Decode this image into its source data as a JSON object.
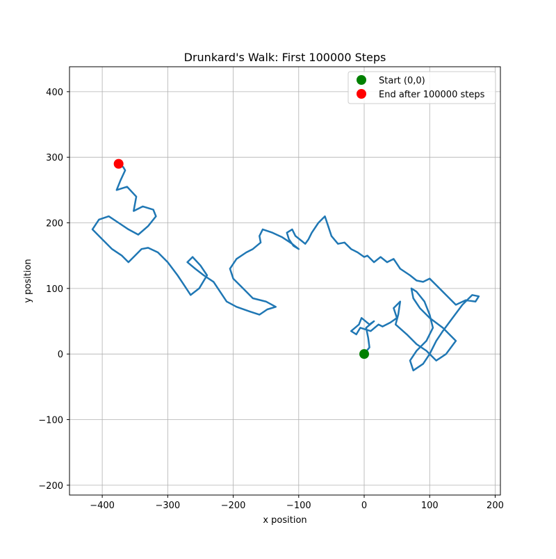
{
  "chart_data": {
    "type": "line",
    "title": "Drunkard's Walk: First 100000 Steps",
    "xlabel": "x position",
    "ylabel": "y position",
    "xlim": [
      -450,
      208
    ],
    "ylim": [
      -215,
      438
    ],
    "x_ticks": [
      -400,
      -300,
      -200,
      -100,
      0,
      100,
      200
    ],
    "y_ticks": [
      -200,
      -100,
      0,
      100,
      200,
      300,
      400
    ],
    "x_tick_labels": [
      "−400",
      "−300",
      "−200",
      "−100",
      "0",
      "100",
      "200"
    ],
    "y_tick_labels": [
      "−200",
      "−100",
      "0",
      "100",
      "200",
      "300",
      "400"
    ],
    "grid": true,
    "legend_position": "top-right",
    "series": [
      {
        "color": "#1f77b4",
        "x": [
          0,
          8,
          6,
          3,
          15,
          8,
          -4,
          -8,
          -20,
          -12,
          -6,
          10,
          22,
          28,
          40,
          50,
          45,
          55,
          52,
          48,
          65,
          80,
          95,
          110,
          125,
          140,
          120,
          100,
          85,
          75,
          72,
          80,
          92,
          100,
          105,
          95,
          80,
          70,
          75,
          90,
          100,
          110,
          120,
          135,
          150,
          165,
          175,
          170,
          155,
          140,
          125,
          110,
          100,
          90,
          80,
          70,
          55,
          45,
          35,
          25,
          15,
          5,
          0,
          -10,
          -20,
          -30,
          -40,
          -50,
          -55,
          -60,
          -70,
          -80,
          -85,
          -90,
          -95,
          -105,
          -110,
          -118,
          -115,
          -108,
          -100,
          -110,
          -125,
          -140,
          -155,
          -160,
          -158,
          -170,
          -180,
          -195,
          -205,
          -200,
          -185,
          -170,
          -150,
          -135,
          -148,
          -160,
          -175,
          -195,
          -210,
          -220,
          -230,
          -245,
          -258,
          -270,
          -262,
          -250,
          -240,
          -252,
          -265,
          -275,
          -285,
          -300,
          -315,
          -330,
          -340,
          -350,
          -360,
          -370,
          -385,
          -400,
          -415,
          -405,
          -390,
          -375,
          -360,
          -345,
          -330,
          -318,
          -322,
          -338,
          -352,
          -348,
          -362,
          -378,
          -372,
          -365,
          -368,
          -375
        ],
        "y": [
          0,
          10,
          25,
          40,
          50,
          45,
          55,
          45,
          35,
          30,
          40,
          35,
          45,
          42,
          48,
          55,
          70,
          80,
          60,
          45,
          30,
          15,
          5,
          -10,
          0,
          20,
          40,
          55,
          70,
          85,
          100,
          95,
          80,
          60,
          40,
          20,
          5,
          -10,
          -25,
          -15,
          0,
          20,
          35,
          55,
          75,
          90,
          88,
          80,
          82,
          75,
          90,
          105,
          115,
          110,
          112,
          120,
          130,
          145,
          140,
          148,
          140,
          150,
          148,
          155,
          160,
          170,
          168,
          180,
          195,
          210,
          200,
          185,
          175,
          168,
          172,
          180,
          190,
          185,
          175,
          165,
          160,
          168,
          178,
          185,
          190,
          180,
          170,
          160,
          155,
          145,
          130,
          115,
          100,
          85,
          80,
          72,
          68,
          60,
          65,
          72,
          80,
          95,
          110,
          120,
          130,
          140,
          148,
          135,
          120,
          100,
          90,
          105,
          120,
          140,
          155,
          162,
          160,
          150,
          140,
          150,
          160,
          175,
          190,
          205,
          210,
          200,
          190,
          182,
          195,
          210,
          220,
          225,
          218,
          240,
          255,
          250,
          265,
          280,
          285,
          290
        ]
      }
    ],
    "markers": [
      {
        "label": "Start (0,0)",
        "x": 0,
        "y": 0,
        "color": "#008000"
      },
      {
        "label": "End after 100000 steps",
        "x": -375,
        "y": 290,
        "color": "#ff0000"
      }
    ]
  }
}
